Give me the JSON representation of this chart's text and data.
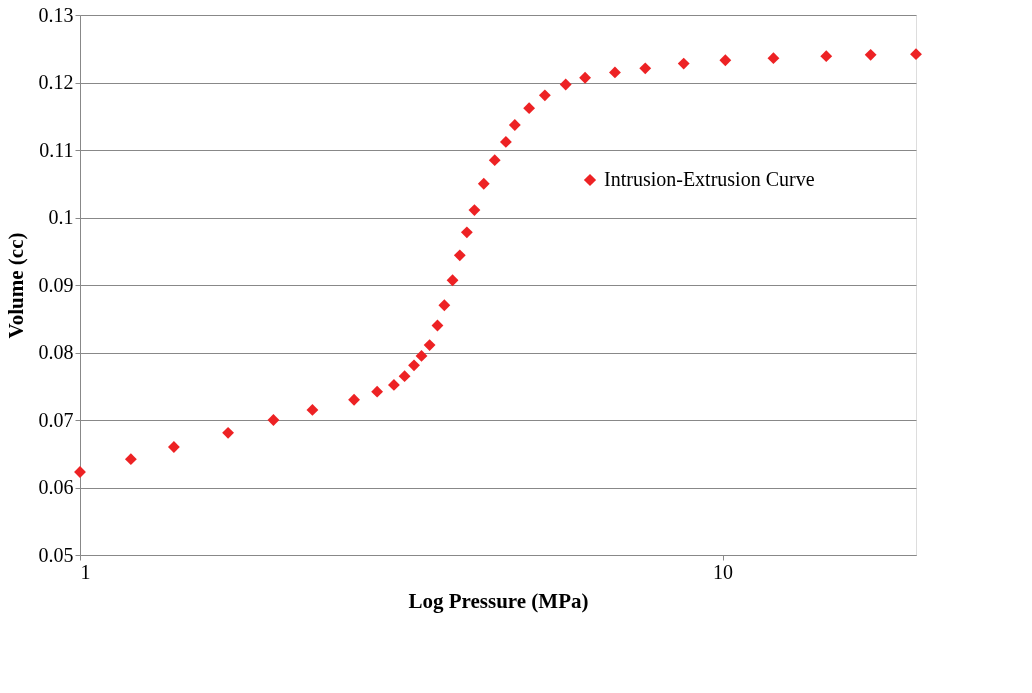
{
  "chart_data": {
    "type": "scatter",
    "xlabel": "Log Pressure (MPa)",
    "ylabel": "Volume (cc)",
    "x": [
      1,
      1.2,
      1.4,
      1.7,
      2.0,
      2.3,
      2.67,
      2.9,
      3.08,
      3.2,
      3.31,
      3.4,
      3.5,
      3.6,
      3.69,
      3.8,
      3.9,
      4.0,
      4.11,
      4.25,
      4.42,
      4.6,
      4.75,
      5.0,
      5.29,
      5.7,
      6.11,
      6.8,
      7.58,
      8.7,
      10.1,
      12,
      14.5,
      17,
      20
    ],
    "series": [
      {
        "name": "Intrusion-Extrusion Curve",
        "color": "#ed2224",
        "marker": "diamond",
        "values": [
          0.0623,
          0.0642,
          0.066,
          0.0681,
          0.07,
          0.0715,
          0.073,
          0.0742,
          0.0752,
          0.0765,
          0.0781,
          0.0795,
          0.0811,
          0.084,
          0.087,
          0.0907,
          0.0944,
          0.0978,
          0.1011,
          0.105,
          0.1085,
          0.1112,
          0.1137,
          0.1162,
          0.1181,
          0.1197,
          0.1207,
          0.1215,
          0.1221,
          0.1228,
          0.1233,
          0.1236,
          0.1239,
          0.1241,
          0.1242
        ]
      }
    ],
    "xlim": [
      1,
      20
    ],
    "xticks": [
      1,
      10
    ],
    "log": "x",
    "ylim": [
      0.05,
      0.13
    ],
    "yticks": [
      0.05,
      0.06,
      0.07,
      0.08,
      0.09,
      0.1,
      0.11,
      0.12,
      0.13
    ],
    "grid": "y",
    "legend": "top right"
  }
}
